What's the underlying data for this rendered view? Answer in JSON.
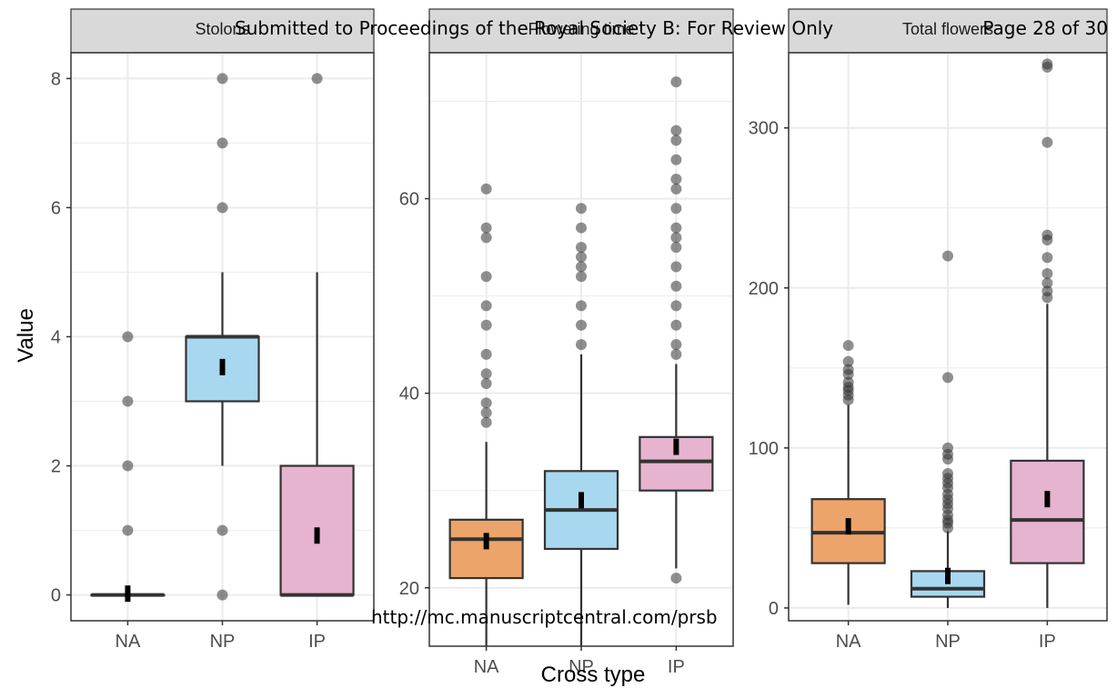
{
  "header": {
    "journal_text": "Submitted to Proceedings of the Royal Society B: For Review Only",
    "page_text": "Page 28 of 30"
  },
  "footer": {
    "url_text": "http://mc.manuscriptcentral.com/prsb"
  },
  "colors": {
    "NA": "#ECA46A",
    "NP": "#A8D8F0",
    "IP": "#E6B4CF",
    "strip_bg": "#D9D9D9",
    "grid": "#EBEBEB"
  },
  "chart_data": [
    {
      "type": "box",
      "facet_label": "Stolons",
      "xlabel": "",
      "ylabel": "Value",
      "categories": [
        "NA",
        "NP",
        "IP"
      ],
      "ylim": [
        -0.4,
        8.4
      ],
      "yticks": [
        0,
        2,
        4,
        6,
        8
      ],
      "boxes": [
        {
          "q1": 0,
          "median": 0,
          "q3": 0,
          "whisker_low": 0,
          "whisker_high": 0,
          "mean": 0.02,
          "outliers": [
            1,
            2,
            3,
            4
          ]
        },
        {
          "q1": 3,
          "median": 4,
          "q3": 4,
          "whisker_low": 2,
          "whisker_high": 5,
          "mean": 3.53,
          "outliers": [
            0,
            1,
            6,
            7,
            8
          ]
        },
        {
          "q1": 0,
          "median": 0,
          "q3": 2,
          "whisker_low": 0,
          "whisker_high": 5,
          "mean": 0.92,
          "outliers": [
            8
          ]
        }
      ]
    },
    {
      "type": "box",
      "facet_label": "Flowering time",
      "xlabel": "Cross type",
      "ylabel": "",
      "categories": [
        "NA",
        "NP",
        "IP"
      ],
      "ylim": [
        14,
        75
      ],
      "yticks": [
        20,
        40,
        60
      ],
      "boxes": [
        {
          "q1": 21,
          "median": 25,
          "q3": 27,
          "whisker_low": 14,
          "whisker_high": 35,
          "mean": 24.8,
          "outliers": [
            37,
            38,
            39,
            41,
            42,
            44,
            47,
            49,
            52,
            56,
            57,
            61
          ]
        },
        {
          "q1": 24,
          "median": 28,
          "q3": 32,
          "whisker_low": 14,
          "whisker_high": 44,
          "mean": 29.0,
          "outliers": [
            45,
            47,
            49,
            52,
            53,
            54,
            55,
            57,
            59
          ]
        },
        {
          "q1": 30,
          "median": 33,
          "q3": 35.5,
          "whisker_low": 22,
          "whisker_high": 43,
          "mean": 34.5,
          "outliers": [
            21,
            44,
            45,
            47,
            49,
            51,
            53,
            55,
            56,
            57,
            59,
            61,
            62,
            64,
            66,
            67,
            72
          ]
        }
      ]
    },
    {
      "type": "box",
      "facet_label": "Total flowers",
      "xlabel": "",
      "ylabel": "",
      "categories": [
        "NA",
        "NP",
        "IP"
      ],
      "ylim": [
        -8,
        347
      ],
      "yticks": [
        0,
        100,
        200,
        300
      ],
      "boxes": [
        {
          "q1": 28,
          "median": 47,
          "q3": 68,
          "whisker_low": 2,
          "whisker_high": 127,
          "mean": 51,
          "outliers": [
            130,
            133,
            136,
            138,
            141,
            146,
            149,
            154,
            164
          ]
        },
        {
          "q1": 7,
          "median": 12,
          "q3": 23,
          "whisker_low": 0,
          "whisker_high": 48,
          "mean": 20,
          "outliers": [
            50,
            53,
            55,
            58,
            62,
            65,
            68,
            71,
            75,
            78,
            81,
            84,
            93,
            96,
            100,
            144,
            220
          ]
        },
        {
          "q1": 28,
          "median": 55,
          "q3": 92,
          "whisker_low": 0,
          "whisker_high": 190,
          "mean": 68,
          "outliers": [
            194,
            198,
            203,
            209,
            219,
            230,
            233,
            291,
            338,
            340
          ]
        }
      ]
    }
  ]
}
